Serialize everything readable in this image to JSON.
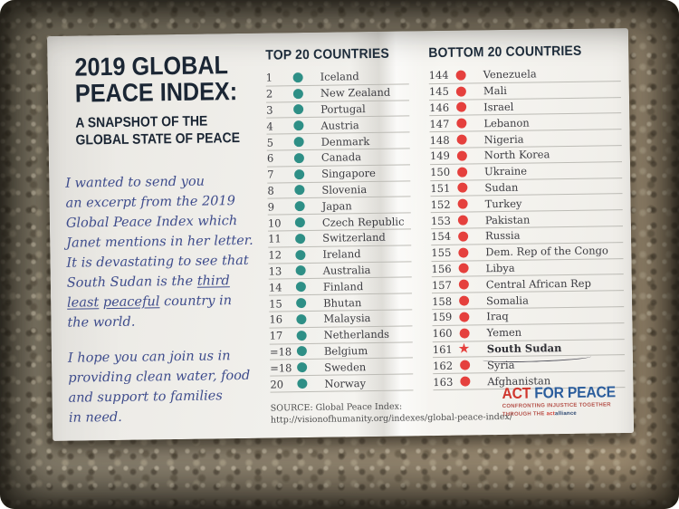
{
  "title": {
    "line1": "2019 GLOBAL",
    "line2": "PEACE INDEX:",
    "sub1": "A SNAPSHOT OF THE",
    "sub2": "GLOBAL STATE OF PEACE"
  },
  "note": {
    "ink_color": "#3e4c8c",
    "paragraphs": [
      [
        [
          {
            "t": "I wanted to send you"
          }
        ],
        [
          {
            "t": "an excerpt from the 2019"
          }
        ],
        [
          {
            "t": "Global Peace Index which"
          }
        ],
        [
          {
            "t": "Janet mentions in her letter."
          }
        ],
        [
          {
            "t": "It is devastating to see that"
          }
        ],
        [
          {
            "t": "South Sudan is the "
          },
          {
            "t": "third",
            "u": true
          }
        ],
        [
          {
            "t": "least",
            "u": true
          },
          {
            "t": " "
          },
          {
            "t": "peaceful",
            "u": true
          },
          {
            "t": " country in"
          }
        ],
        [
          {
            "t": "the world."
          }
        ]
      ],
      [
        [
          {
            "t": "I hope you can join us in"
          }
        ],
        [
          {
            "t": "providing clean water, food"
          }
        ],
        [
          {
            "t": "and support to families"
          }
        ],
        [
          {
            "t": "in need."
          }
        ]
      ]
    ]
  },
  "top20": {
    "header": "TOP 20 COUNTRIES",
    "dot_color": "#2e8f86",
    "rows": [
      {
        "rank": "1",
        "name": "Iceland"
      },
      {
        "rank": "2",
        "name": "New Zealand"
      },
      {
        "rank": "3",
        "name": "Portugal"
      },
      {
        "rank": "4",
        "name": "Austria"
      },
      {
        "rank": "5",
        "name": "Denmark"
      },
      {
        "rank": "6",
        "name": "Canada"
      },
      {
        "rank": "7",
        "name": "Singapore"
      },
      {
        "rank": "8",
        "name": "Slovenia"
      },
      {
        "rank": "9",
        "name": "Japan"
      },
      {
        "rank": "10",
        "name": "Czech Republic"
      },
      {
        "rank": "11",
        "name": "Switzerland"
      },
      {
        "rank": "12",
        "name": "Ireland"
      },
      {
        "rank": "13",
        "name": "Australia"
      },
      {
        "rank": "14",
        "name": "Finland"
      },
      {
        "rank": "15",
        "name": "Bhutan"
      },
      {
        "rank": "16",
        "name": "Malaysia"
      },
      {
        "rank": "17",
        "name": "Netherlands"
      },
      {
        "rank": "=18",
        "name": "Belgium"
      },
      {
        "rank": "=18",
        "name": "Sweden"
      },
      {
        "rank": "20",
        "name": "Norway"
      }
    ]
  },
  "bottom20": {
    "header": "BOTTOM 20 COUNTRIES",
    "dot_color": "#e5403d",
    "rows": [
      {
        "rank": "144",
        "name": "Venezuela"
      },
      {
        "rank": "145",
        "name": "Mali"
      },
      {
        "rank": "146",
        "name": "Israel"
      },
      {
        "rank": "147",
        "name": "Lebanon"
      },
      {
        "rank": "148",
        "name": "Nigeria"
      },
      {
        "rank": "149",
        "name": "North Korea"
      },
      {
        "rank": "150",
        "name": "Ukraine"
      },
      {
        "rank": "151",
        "name": "Sudan"
      },
      {
        "rank": "152",
        "name": "Turkey"
      },
      {
        "rank": "153",
        "name": "Pakistan"
      },
      {
        "rank": "154",
        "name": "Russia"
      },
      {
        "rank": "155",
        "name": "Dem. Rep of the Congo"
      },
      {
        "rank": "156",
        "name": "Libya"
      },
      {
        "rank": "157",
        "name": "Central African Rep"
      },
      {
        "rank": "158",
        "name": "Somalia"
      },
      {
        "rank": "159",
        "name": "Iraq"
      },
      {
        "rank": "160",
        "name": "Yemen"
      },
      {
        "rank": "161",
        "name": "South Sudan",
        "marker": "star",
        "underline": true
      },
      {
        "rank": "162",
        "name": "Syria"
      },
      {
        "rank": "163",
        "name": "Afghanistan"
      }
    ]
  },
  "source": {
    "line1": "SOURCE: Global Peace Index:",
    "line2": "http://visionofhumanity.org/indexes/global-peace-index/"
  },
  "logo": {
    "act": "ACT",
    "for_peace": " FOR PEACE",
    "tagline1": "CONFRONTING INJUSTICE TOGETHER",
    "tagline2_pre": "THROUGH THE ",
    "tagline2_act": "act",
    "tagline2_alliance": "alliance",
    "colors": {
      "act_red": "#d0372e",
      "peace_blue": "#2b5d9c",
      "alliance_navy": "#27436e"
    }
  }
}
